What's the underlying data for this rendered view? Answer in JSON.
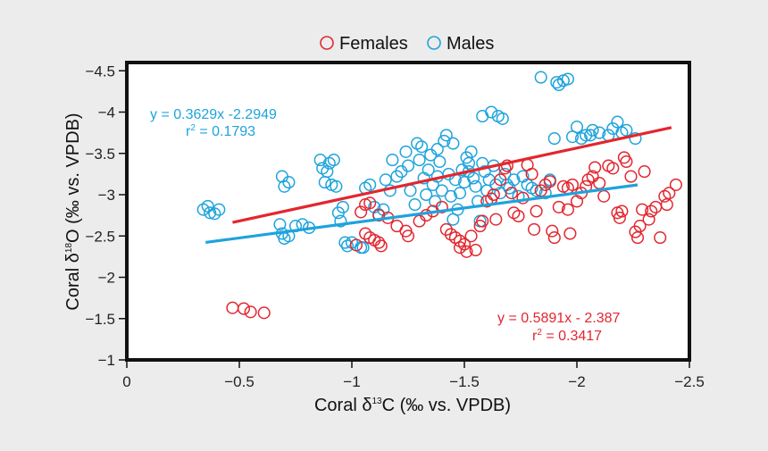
{
  "chart_data": {
    "type": "scatter",
    "xlabel": "Coral δ13C (‰ vs. VPDB)",
    "ylabel": "Coral δ18O (‰ vs. VPDB)",
    "xlabel_parts": {
      "pre": "Coral δ",
      "sup": "13",
      "post": "C (‰ vs. VPDB)"
    },
    "ylabel_parts": {
      "pre": "Coral δ",
      "sup": "18",
      "post": "O (‰ vs. VPDB)"
    },
    "xlim": [
      0,
      -2.5
    ],
    "ylim": [
      -1,
      -4.6
    ],
    "x_ticks": [
      0,
      -0.5,
      -1,
      -1.5,
      -2,
      -2.5
    ],
    "y_ticks": [
      -1,
      -1.5,
      -2,
      -2.5,
      -3,
      -3.5,
      -4,
      -4.5
    ],
    "x_tick_labels": [
      "0",
      "−0.5",
      "−1",
      "−1.5",
      "−2",
      "−2.5"
    ],
    "y_tick_labels": [
      "−1",
      "−1.5",
      "−2",
      "−2.5",
      "−3",
      "−3.5",
      "−4",
      "−4.5"
    ],
    "grid": false,
    "legend_position": "top-center",
    "series": [
      {
        "name": "Females",
        "color": "#e3262f",
        "marker": "open-circle",
        "fit": {
          "equation": "y = 0.5891x - 2.387",
          "r2_label": "r",
          "r2_sup": "2",
          "r2_value": " = 0.3417",
          "x_range": [
            -0.47,
            -2.42
          ]
        },
        "points": [
          [
            -0.47,
            -1.63
          ],
          [
            -0.52,
            -1.62
          ],
          [
            -0.55,
            -1.58
          ],
          [
            -0.61,
            -1.57
          ],
          [
            -1.02,
            -2.39
          ],
          [
            -1.06,
            -2.53
          ],
          [
            -1.08,
            -2.48
          ],
          [
            -1.1,
            -2.45
          ],
          [
            -1.12,
            -2.42
          ],
          [
            -1.13,
            -2.38
          ],
          [
            -1.04,
            -2.79
          ],
          [
            -1.06,
            -2.88
          ],
          [
            -1.08,
            -2.9
          ],
          [
            -1.12,
            -2.75
          ],
          [
            -1.16,
            -2.72
          ],
          [
            -1.2,
            -2.62
          ],
          [
            -1.24,
            -2.56
          ],
          [
            -1.25,
            -2.5
          ],
          [
            -1.3,
            -2.68
          ],
          [
            -1.33,
            -2.75
          ],
          [
            -1.36,
            -2.8
          ],
          [
            -1.4,
            -2.85
          ],
          [
            -1.42,
            -2.58
          ],
          [
            -1.44,
            -2.52
          ],
          [
            -1.46,
            -2.48
          ],
          [
            -1.48,
            -2.44
          ],
          [
            -1.48,
            -2.36
          ],
          [
            -1.5,
            -2.4
          ],
          [
            -1.51,
            -2.31
          ],
          [
            -1.53,
            -2.5
          ],
          [
            -1.55,
            -2.33
          ],
          [
            -1.57,
            -2.62
          ],
          [
            -1.58,
            -2.68
          ],
          [
            -1.6,
            -2.92
          ],
          [
            -1.62,
            -2.95
          ],
          [
            -1.63,
            -3.0
          ],
          [
            -1.64,
            -2.7
          ],
          [
            -1.66,
            -3.18
          ],
          [
            -1.68,
            -3.32
          ],
          [
            -1.69,
            -3.35
          ],
          [
            -1.71,
            -3.02
          ],
          [
            -1.72,
            -2.78
          ],
          [
            -1.74,
            -2.74
          ],
          [
            -1.76,
            -2.96
          ],
          [
            -1.78,
            -3.36
          ],
          [
            -1.8,
            -3.25
          ],
          [
            -1.81,
            -2.58
          ],
          [
            -1.82,
            -2.8
          ],
          [
            -1.84,
            -3.05
          ],
          [
            -1.86,
            -3.12
          ],
          [
            -1.88,
            -3.16
          ],
          [
            -1.89,
            -2.56
          ],
          [
            -1.9,
            -2.48
          ],
          [
            -1.92,
            -2.85
          ],
          [
            -1.94,
            -3.1
          ],
          [
            -1.96,
            -3.08
          ],
          [
            -1.97,
            -2.53
          ],
          [
            -1.98,
            -3.12
          ],
          [
            -2.0,
            -2.92
          ],
          [
            -2.02,
            -3.02
          ],
          [
            -2.04,
            -3.1
          ],
          [
            -2.05,
            -3.18
          ],
          [
            -2.07,
            -3.22
          ],
          [
            -2.08,
            -3.33
          ],
          [
            -2.1,
            -3.14
          ],
          [
            -2.12,
            -2.98
          ],
          [
            -2.14,
            -3.35
          ],
          [
            -2.16,
            -3.32
          ],
          [
            -2.18,
            -2.78
          ],
          [
            -2.19,
            -2.72
          ],
          [
            -2.2,
            -2.8
          ],
          [
            -2.21,
            -3.45
          ],
          [
            -2.22,
            -3.4
          ],
          [
            -2.24,
            -3.22
          ],
          [
            -2.26,
            -2.55
          ],
          [
            -2.27,
            -2.48
          ],
          [
            -2.28,
            -2.62
          ],
          [
            -2.29,
            -2.82
          ],
          [
            -2.3,
            -3.28
          ],
          [
            -2.32,
            -2.7
          ],
          [
            -2.33,
            -2.8
          ],
          [
            -2.35,
            -2.85
          ],
          [
            -2.37,
            -2.48
          ],
          [
            -2.39,
            -2.98
          ],
          [
            -2.4,
            -2.88
          ],
          [
            -2.41,
            -3.02
          ],
          [
            -2.44,
            -3.12
          ],
          [
            -1.96,
            -2.82
          ]
        ]
      },
      {
        "name": "Males",
        "color": "#1ea3dc",
        "marker": "open-circle",
        "fit": {
          "equation": "y = 0.3629x -2.2949",
          "r2_label": "r",
          "r2_sup": "2",
          "r2_value": " = 0.1793",
          "x_range": [
            -0.35,
            -2.27
          ]
        },
        "points": [
          [
            -0.34,
            -2.82
          ],
          [
            -0.36,
            -2.86
          ],
          [
            -0.37,
            -2.78
          ],
          [
            -0.39,
            -2.77
          ],
          [
            -0.41,
            -2.82
          ],
          [
            -0.68,
            -2.64
          ],
          [
            -0.69,
            -2.53
          ],
          [
            -0.7,
            -2.47
          ],
          [
            -0.72,
            -2.5
          ],
          [
            -0.75,
            -2.62
          ],
          [
            -0.78,
            -2.64
          ],
          [
            -0.81,
            -2.6
          ],
          [
            -0.69,
            -3.22
          ],
          [
            -0.7,
            -3.1
          ],
          [
            -0.72,
            -3.15
          ],
          [
            -0.86,
            -3.42
          ],
          [
            -0.87,
            -3.32
          ],
          [
            -0.88,
            -3.15
          ],
          [
            -0.89,
            -3.28
          ],
          [
            -0.9,
            -3.38
          ],
          [
            -0.91,
            -3.12
          ],
          [
            -0.92,
            -3.42
          ],
          [
            -0.93,
            -3.1
          ],
          [
            -0.94,
            -2.78
          ],
          [
            -0.95,
            -2.68
          ],
          [
            -0.96,
            -2.85
          ],
          [
            -0.97,
            -2.42
          ],
          [
            -0.98,
            -2.38
          ],
          [
            -1.0,
            -2.42
          ],
          [
            -1.04,
            -2.36
          ],
          [
            -1.05,
            -2.36
          ],
          [
            -1.06,
            -3.08
          ],
          [
            -1.08,
            -3.12
          ],
          [
            -1.1,
            -2.85
          ],
          [
            -1.12,
            -2.76
          ],
          [
            -1.14,
            -2.82
          ],
          [
            -1.15,
            -3.18
          ],
          [
            -1.17,
            -3.05
          ],
          [
            -1.18,
            -3.42
          ],
          [
            -1.2,
            -3.22
          ],
          [
            -1.22,
            -3.28
          ],
          [
            -1.24,
            -3.52
          ],
          [
            -1.25,
            -3.35
          ],
          [
            -1.26,
            -3.05
          ],
          [
            -1.28,
            -2.88
          ],
          [
            -1.29,
            -3.62
          ],
          [
            -1.3,
            -3.42
          ],
          [
            -1.31,
            -3.58
          ],
          [
            -1.32,
            -3.2
          ],
          [
            -1.33,
            -3.0
          ],
          [
            -1.34,
            -3.3
          ],
          [
            -1.35,
            -3.48
          ],
          [
            -1.36,
            -3.12
          ],
          [
            -1.37,
            -2.92
          ],
          [
            -1.38,
            -3.22
          ],
          [
            -1.39,
            -3.4
          ],
          [
            -1.4,
            -3.05
          ],
          [
            -1.41,
            -3.65
          ],
          [
            -1.42,
            -3.72
          ],
          [
            -1.43,
            -3.25
          ],
          [
            -1.44,
            -2.98
          ],
          [
            -1.45,
            -2.7
          ],
          [
            -1.46,
            -3.18
          ],
          [
            -1.47,
            -2.82
          ],
          [
            -1.48,
            -3.02
          ],
          [
            -1.49,
            -3.3
          ],
          [
            -1.5,
            -3.15
          ],
          [
            -1.51,
            -3.45
          ],
          [
            -1.52,
            -3.38
          ],
          [
            -1.53,
            -3.52
          ],
          [
            -1.54,
            -3.2
          ],
          [
            -1.55,
            -3.1
          ],
          [
            -1.56,
            -2.92
          ],
          [
            -1.57,
            -2.68
          ],
          [
            -1.58,
            -3.95
          ],
          [
            -1.59,
            -3.28
          ],
          [
            -1.6,
            -3.05
          ],
          [
            -1.61,
            -3.18
          ],
          [
            -1.62,
            -4.0
          ],
          [
            -1.63,
            -3.35
          ],
          [
            -1.64,
            -3.12
          ],
          [
            -1.65,
            -3.95
          ],
          [
            -1.66,
            -3.02
          ],
          [
            -1.67,
            -3.92
          ],
          [
            -1.68,
            -3.25
          ],
          [
            -1.69,
            -3.12
          ],
          [
            -1.7,
            -3.08
          ],
          [
            -1.72,
            -3.18
          ],
          [
            -1.74,
            -2.98
          ],
          [
            -1.76,
            -3.22
          ],
          [
            -1.78,
            -3.12
          ],
          [
            -1.8,
            -3.08
          ],
          [
            -1.82,
            -3.05
          ],
          [
            -1.84,
            -4.42
          ],
          [
            -1.86,
            -3.02
          ],
          [
            -1.88,
            -3.18
          ],
          [
            -1.9,
            -3.68
          ],
          [
            -1.91,
            -4.36
          ],
          [
            -1.92,
            -4.33
          ],
          [
            -1.94,
            -4.38
          ],
          [
            -1.96,
            -4.4
          ],
          [
            -1.98,
            -3.7
          ],
          [
            -2.0,
            -3.82
          ],
          [
            -2.02,
            -3.68
          ],
          [
            -2.04,
            -3.72
          ],
          [
            -2.06,
            -3.72
          ],
          [
            -2.07,
            -3.78
          ],
          [
            -2.1,
            -3.75
          ],
          [
            -2.14,
            -3.72
          ],
          [
            -2.16,
            -3.8
          ],
          [
            -2.18,
            -3.88
          ],
          [
            -2.2,
            -3.75
          ],
          [
            -2.22,
            -3.78
          ],
          [
            -2.26,
            -3.68
          ],
          [
            -1.38,
            -3.55
          ],
          [
            -1.45,
            -3.62
          ],
          [
            -1.52,
            -3.28
          ],
          [
            -1.58,
            -3.38
          ]
        ]
      }
    ]
  }
}
